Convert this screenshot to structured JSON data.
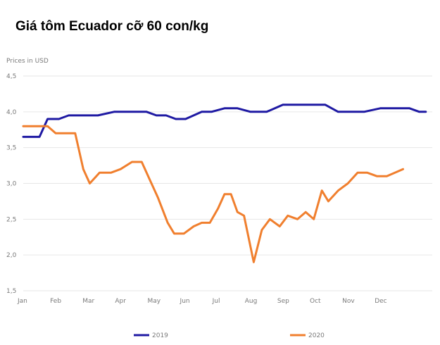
{
  "title": "Giá tôm Ecuador cỡ 60 con/kg",
  "chart_data": {
    "type": "line",
    "title": "Giá tôm Ecuador cỡ 60 con/kg",
    "ylabel": "Prices in USD",
    "xlabel": "",
    "ylim": [
      1.5,
      4.5
    ],
    "yticks": [
      "4,5",
      "4,0",
      "3,5",
      "3,0",
      "2,5",
      "2,0",
      "1,5"
    ],
    "ytick_values": [
      4.5,
      4.0,
      3.5,
      3.0,
      2.5,
      2.0,
      1.5
    ],
    "xlim": [
      0,
      12.6
    ],
    "categories": [
      "Jan",
      "Feb",
      "Mar",
      "Apr",
      "May",
      "Jun",
      "Jul",
      "Aug",
      "Sep",
      "Oct",
      "Nov",
      "Dec"
    ],
    "grid": "horizontal",
    "legend_position": "bottom",
    "series": [
      {
        "name": "2019",
        "color": "#1f1aa3",
        "x": [
          0.0,
          0.5,
          0.75,
          1.1,
          1.4,
          1.9,
          2.3,
          2.8,
          3.4,
          3.8,
          4.1,
          4.4,
          4.7,
          5.0,
          5.5,
          5.8,
          6.2,
          6.6,
          7.0,
          7.5,
          8.0,
          8.5,
          8.9,
          9.3,
          9.7,
          10.1,
          10.5,
          11.0,
          11.5,
          11.9,
          12.2,
          12.4
        ],
        "values": [
          3.65,
          3.65,
          3.9,
          3.9,
          3.95,
          3.95,
          3.95,
          4.0,
          4.0,
          4.0,
          3.95,
          3.95,
          3.9,
          3.9,
          4.0,
          4.0,
          4.05,
          4.05,
          4.0,
          4.0,
          4.1,
          4.1,
          4.1,
          4.1,
          4.0,
          4.0,
          4.0,
          4.05,
          4.05,
          4.05,
          4.0,
          4.0
        ]
      },
      {
        "name": "2020",
        "color": "#f07f2e",
        "x": [
          0.0,
          0.25,
          0.5,
          0.75,
          1.0,
          1.3,
          1.6,
          1.85,
          2.05,
          2.35,
          2.7,
          3.0,
          3.35,
          3.65,
          3.9,
          4.15,
          4.45,
          4.65,
          4.95,
          5.25,
          5.5,
          5.75,
          6.0,
          6.2,
          6.4,
          6.6,
          6.8,
          7.1,
          7.35,
          7.6,
          7.9,
          8.15,
          8.45,
          8.7,
          8.95,
          9.2,
          9.4,
          9.7,
          10.0,
          10.3,
          10.6,
          10.9,
          11.2,
          11.45,
          11.7
        ],
        "values": [
          3.8,
          3.8,
          3.8,
          3.8,
          3.7,
          3.7,
          3.7,
          3.2,
          3.0,
          3.15,
          3.15,
          3.2,
          3.3,
          3.3,
          3.05,
          2.8,
          2.45,
          2.3,
          2.3,
          2.4,
          2.45,
          2.45,
          2.65,
          2.85,
          2.85,
          2.6,
          2.55,
          1.9,
          2.35,
          2.5,
          2.4,
          2.55,
          2.5,
          2.6,
          2.5,
          2.9,
          2.75,
          2.9,
          3.0,
          3.15,
          3.15,
          3.1,
          3.1,
          3.15,
          3.2
        ]
      }
    ]
  },
  "legend": {
    "items": [
      {
        "label": "2019",
        "color": "#1f1aa3"
      },
      {
        "label": "2020",
        "color": "#f07f2e"
      }
    ]
  }
}
